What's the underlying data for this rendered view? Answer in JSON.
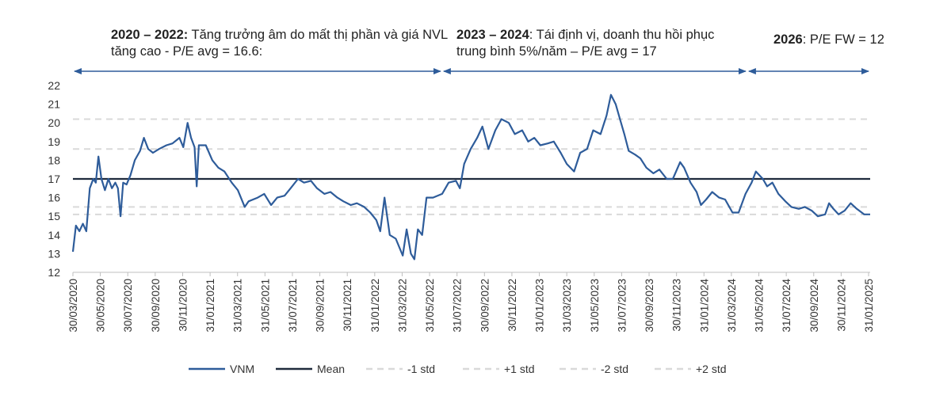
{
  "chart_data": {
    "type": "line",
    "y_ticks": [
      12,
      13,
      14,
      15,
      16,
      17,
      18,
      19,
      20,
      21,
      22
    ],
    "ylim": [
      12,
      22
    ],
    "x_tick_labels": [
      "30/03/2020",
      "30/05/2020",
      "30/07/2020",
      "30/09/2020",
      "30/11/2020",
      "31/01/2021",
      "31/03/2021",
      "31/05/2021",
      "31/07/2021",
      "30/09/2021",
      "30/11/2021",
      "31/01/2022",
      "31/03/2022",
      "31/05/2022",
      "31/07/2022",
      "30/09/2022",
      "30/11/2022",
      "31/01/2023",
      "31/03/2023",
      "31/05/2023",
      "31/07/2023",
      "30/09/2023",
      "30/11/2023",
      "31/01/2024",
      "31/03/2024",
      "31/05/2024",
      "31/07/2024",
      "30/09/2024",
      "30/11/2024",
      "31/01/2025"
    ],
    "x_range": [
      "2020-03-30",
      "2025-04-15"
    ],
    "mean": 17,
    "std_bands": {
      "minus1": 15.5,
      "plus1": 18.6,
      "minus2": 15.1,
      "plus2": 20.2
    },
    "annotations": [
      {
        "bold": "2020 – 2022:",
        "text": " Tăng trưởng âm do mất thị phần và giá NVL tăng cao - P/E avg = 16.6:",
        "start": "2020-03-30",
        "end": "2022-07-31"
      },
      {
        "bold": "2023 – 2024",
        "text": ": Tái định vị, doanh thu hồi phục trung bình 5%/năm – P/E avg = 17",
        "start": "2022-07-31",
        "end": "2024-07-05"
      },
      {
        "bold": "2026",
        "text": ": P/E FW = 12",
        "start": "2024-07-05",
        "end": "2025-04-15"
      }
    ],
    "legend": [
      {
        "label": "VNM",
        "style": "solid",
        "color": "#2E5C9A"
      },
      {
        "label": "Mean",
        "style": "solid",
        "color": "#1F2A3C"
      },
      {
        "label": "-1 std",
        "style": "dashed",
        "color": "#D9D9D9"
      },
      {
        "label": "+1 std",
        "style": "dashed",
        "color": "#D9D9D9"
      },
      {
        "label": "-2 std",
        "style": "dashed",
        "color": "#D9D9D9"
      },
      {
        "label": "+2 std",
        "style": "dashed",
        "color": "#D9D9D9"
      }
    ],
    "legend_position": "bottom",
    "series": [
      {
        "name": "VNM",
        "color": "#2E5C9A",
        "points": [
          [
            "2020-03-30",
            13.1
          ],
          [
            "2020-04-06",
            14.5
          ],
          [
            "2020-04-14",
            14.2
          ],
          [
            "2020-04-22",
            14.6
          ],
          [
            "2020-04-30",
            14.2
          ],
          [
            "2020-05-08",
            16.5
          ],
          [
            "2020-05-16",
            17.0
          ],
          [
            "2020-05-22",
            16.8
          ],
          [
            "2020-05-28",
            18.2
          ],
          [
            "2020-06-04",
            17.0
          ],
          [
            "2020-06-12",
            16.4
          ],
          [
            "2020-06-20",
            17.0
          ],
          [
            "2020-06-28",
            16.5
          ],
          [
            "2020-07-06",
            16.8
          ],
          [
            "2020-07-12",
            16.5
          ],
          [
            "2020-07-18",
            15.0
          ],
          [
            "2020-07-24",
            16.8
          ],
          [
            "2020-08-01",
            16.7
          ],
          [
            "2020-08-10",
            17.2
          ],
          [
            "2020-08-20",
            18.0
          ],
          [
            "2020-09-01",
            18.5
          ],
          [
            "2020-09-10",
            19.2
          ],
          [
            "2020-09-20",
            18.6
          ],
          [
            "2020-10-01",
            18.4
          ],
          [
            "2020-10-15",
            18.6
          ],
          [
            "2020-11-01",
            18.8
          ],
          [
            "2020-11-15",
            18.9
          ],
          [
            "2020-12-01",
            19.2
          ],
          [
            "2020-12-10",
            18.7
          ],
          [
            "2020-12-20",
            20.0
          ],
          [
            "2020-12-28",
            19.2
          ],
          [
            "2021-01-05",
            18.7
          ],
          [
            "2021-01-10",
            16.6
          ],
          [
            "2021-01-15",
            18.8
          ],
          [
            "2021-01-31",
            18.8
          ],
          [
            "2021-02-15",
            18.0
          ],
          [
            "2021-03-01",
            17.6
          ],
          [
            "2021-03-15",
            17.4
          ],
          [
            "2021-04-01",
            16.8
          ],
          [
            "2021-04-15",
            16.4
          ],
          [
            "2021-05-01",
            15.5
          ],
          [
            "2021-05-10",
            15.8
          ],
          [
            "2021-05-31",
            16.0
          ],
          [
            "2021-06-15",
            16.2
          ],
          [
            "2021-07-01",
            15.6
          ],
          [
            "2021-07-15",
            16.0
          ],
          [
            "2021-08-01",
            16.1
          ],
          [
            "2021-08-15",
            16.5
          ],
          [
            "2021-09-01",
            17.0
          ],
          [
            "2021-09-15",
            16.8
          ],
          [
            "2021-10-01",
            16.9
          ],
          [
            "2021-10-15",
            16.5
          ],
          [
            "2021-11-01",
            16.2
          ],
          [
            "2021-11-15",
            16.3
          ],
          [
            "2021-12-01",
            16.0
          ],
          [
            "2021-12-15",
            15.8
          ],
          [
            "2022-01-01",
            15.6
          ],
          [
            "2022-01-15",
            15.7
          ],
          [
            "2022-02-01",
            15.5
          ],
          [
            "2022-02-15",
            15.2
          ],
          [
            "2022-03-01",
            14.8
          ],
          [
            "2022-03-10",
            14.2
          ],
          [
            "2022-03-20",
            16.0
          ],
          [
            "2022-04-01",
            14.0
          ],
          [
            "2022-04-15",
            13.8
          ],
          [
            "2022-05-01",
            12.9
          ],
          [
            "2022-05-10",
            14.3
          ],
          [
            "2022-05-20",
            13.0
          ],
          [
            "2022-05-28",
            12.7
          ],
          [
            "2022-06-05",
            14.3
          ],
          [
            "2022-06-15",
            14.0
          ],
          [
            "2022-06-25",
            16.0
          ],
          [
            "2022-07-10",
            16.0
          ],
          [
            "2022-07-31",
            16.2
          ],
          [
            "2022-08-15",
            16.8
          ],
          [
            "2022-09-01",
            16.9
          ],
          [
            "2022-09-10",
            16.5
          ],
          [
            "2022-09-20",
            17.8
          ],
          [
            "2022-10-05",
            18.6
          ],
          [
            "2022-10-20",
            19.2
          ],
          [
            "2022-11-01",
            19.8
          ],
          [
            "2022-11-15",
            18.6
          ],
          [
            "2022-12-01",
            19.6
          ],
          [
            "2022-12-15",
            20.2
          ],
          [
            "2023-01-01",
            20.0
          ],
          [
            "2023-01-15",
            19.4
          ],
          [
            "2023-02-01",
            19.6
          ],
          [
            "2023-02-15",
            19.0
          ],
          [
            "2023-03-01",
            19.2
          ],
          [
            "2023-03-15",
            18.8
          ],
          [
            "2023-04-01",
            18.9
          ],
          [
            "2023-04-15",
            19.0
          ],
          [
            "2023-05-01",
            18.4
          ],
          [
            "2023-05-15",
            17.8
          ],
          [
            "2023-06-01",
            17.4
          ],
          [
            "2023-06-15",
            18.4
          ],
          [
            "2023-07-01",
            18.6
          ],
          [
            "2023-07-15",
            19.6
          ],
          [
            "2023-08-01",
            19.4
          ],
          [
            "2023-08-15",
            20.4
          ],
          [
            "2023-08-25",
            21.5
          ],
          [
            "2023-09-05",
            21.0
          ],
          [
            "2023-09-15",
            20.2
          ],
          [
            "2023-09-25",
            19.4
          ],
          [
            "2023-10-05",
            18.5
          ],
          [
            "2023-10-20",
            18.3
          ],
          [
            "2023-11-01",
            18.1
          ],
          [
            "2023-11-15",
            17.6
          ],
          [
            "2023-12-01",
            17.3
          ],
          [
            "2023-12-15",
            17.5
          ],
          [
            "2024-01-01",
            17.0
          ],
          [
            "2024-01-15",
            17.0
          ],
          [
            "2024-02-01",
            17.9
          ],
          [
            "2024-02-10",
            17.6
          ],
          [
            "2024-02-25",
            16.8
          ],
          [
            "2024-03-10",
            16.3
          ],
          [
            "2024-03-20",
            15.6
          ],
          [
            "2024-04-01",
            15.9
          ],
          [
            "2024-04-15",
            16.3
          ],
          [
            "2024-05-01",
            16.0
          ],
          [
            "2024-05-15",
            15.9
          ],
          [
            "2024-06-01",
            15.2
          ],
          [
            "2024-06-15",
            15.2
          ],
          [
            "2024-07-01",
            16.2
          ],
          [
            "2024-07-15",
            16.8
          ],
          [
            "2024-07-25",
            17.4
          ],
          [
            "2024-08-10",
            17.0
          ],
          [
            "2024-08-20",
            16.6
          ],
          [
            "2024-09-01",
            16.8
          ],
          [
            "2024-09-15",
            16.2
          ],
          [
            "2024-10-01",
            15.8
          ],
          [
            "2024-10-15",
            15.5
          ],
          [
            "2024-11-01",
            15.4
          ],
          [
            "2024-11-15",
            15.5
          ],
          [
            "2024-12-01",
            15.3
          ],
          [
            "2024-12-15",
            15.0
          ],
          [
            "2025-01-01",
            15.1
          ],
          [
            "2025-01-10",
            15.7
          ],
          [
            "2025-01-20",
            15.4
          ],
          [
            "2025-02-01",
            15.1
          ],
          [
            "2025-02-15",
            15.3
          ],
          [
            "2025-03-01",
            15.7
          ],
          [
            "2025-03-15",
            15.4
          ],
          [
            "2025-04-01",
            15.1
          ],
          [
            "2025-04-15",
            15.1
          ]
        ]
      },
      {
        "name": "Mean",
        "color": "#1F2A3C",
        "value": 17
      }
    ]
  }
}
